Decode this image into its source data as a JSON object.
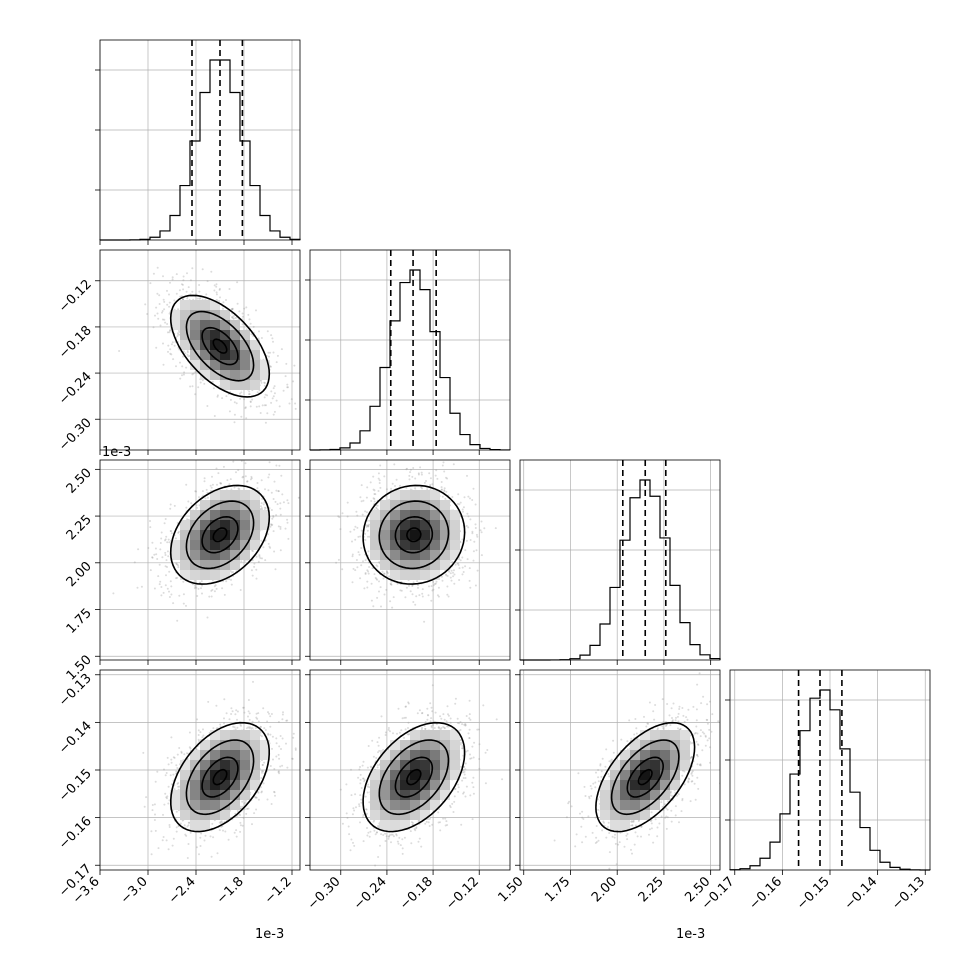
{
  "chart_data": {
    "type": "corner",
    "parameters": 4,
    "grid": true,
    "colors": {
      "line": "#000000",
      "grid": "#b0b0b0",
      "scatter": "#9a9a9a",
      "dashed": "#000000"
    },
    "offset_labels": [
      {
        "text": "1e-3",
        "target": "panel-1-0"
      },
      {
        "text": "1e-3",
        "target": "panel-3-0"
      },
      {
        "text": "1e-3",
        "target": "panel-3-2"
      }
    ],
    "axes": [
      {
        "range": [
          -3.6,
          -1.1
        ],
        "ticks": [
          -3.6,
          -3.0,
          -2.4,
          -1.8,
          -1.2
        ],
        "tick_labels": [
          "−3.6",
          "−3.0",
          "−2.4",
          "−1.8",
          "−1.2"
        ],
        "mean": -2.1,
        "sd": 0.28,
        "quantiles": [
          -2.45,
          -2.1,
          -1.82
        ]
      },
      {
        "range": [
          -0.34,
          -0.08
        ],
        "ticks": [
          -0.3,
          -0.24,
          -0.18,
          -0.12
        ],
        "tick_labels": [
          "−0.30",
          "−0.24",
          "−0.18",
          "−0.12"
        ],
        "mean": -0.205,
        "sd": 0.03,
        "quantiles": [
          -0.235,
          -0.206,
          -0.176
        ]
      },
      {
        "range": [
          1.48,
          2.55
        ],
        "ticks": [
          1.5,
          1.75,
          2.0,
          2.25,
          2.5
        ],
        "tick_labels": [
          "1.50",
          "1.75",
          "2.00",
          "2.25",
          "2.50"
        ],
        "mean": 2.15,
        "sd": 0.12,
        "quantiles": [
          2.03,
          2.15,
          2.26
        ]
      },
      {
        "range": [
          -0.171,
          -0.129
        ],
        "ticks": [
          -0.17,
          -0.16,
          -0.15,
          -0.14,
          -0.13
        ],
        "tick_labels": [
          "−0.17",
          "−0.16",
          "−0.15",
          "−0.14",
          "−0.13"
        ],
        "mean": -0.1515,
        "sd": 0.0052,
        "quantiles": [
          -0.1566,
          -0.1521,
          -0.1475
        ]
      }
    ],
    "correlations": [
      {
        "i": 1,
        "j": 0,
        "r": -0.55
      },
      {
        "i": 2,
        "j": 0,
        "r": 0.35
      },
      {
        "i": 2,
        "j": 1,
        "r": 0.05
      },
      {
        "i": 3,
        "j": 0,
        "r": 0.45
      },
      {
        "i": 3,
        "j": 1,
        "r": 0.45
      },
      {
        "i": 3,
        "j": 2,
        "r": 0.55
      }
    ],
    "contour_levels": [
      0.3,
      0.8,
      1.5,
      2.2
    ],
    "histogram_bins": 20,
    "samples_per_panel": 1500
  }
}
